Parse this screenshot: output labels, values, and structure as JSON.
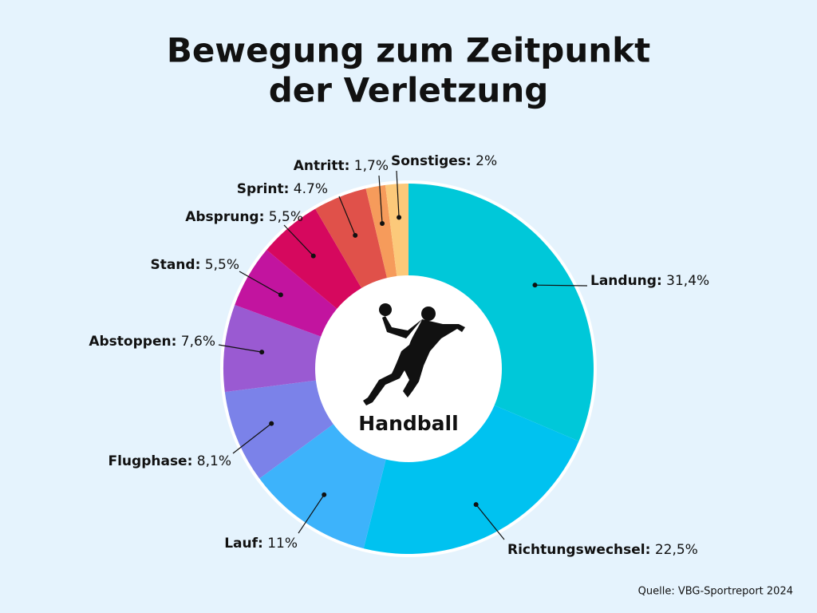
{
  "chart_data": {
    "type": "donut",
    "title": [
      "Bewegung zum Zeitpunkt",
      "der Verletzung"
    ],
    "center_label": "Handball",
    "source": "Quelle: VBG-Sportreport 2024",
    "categories": [
      "Landung:",
      "Richtungswechsel:",
      "Lauf:",
      "Flugphase:",
      "Abstoppen:",
      "Stand:",
      "Absprung:",
      "Sprint:",
      "Antritt:",
      "Sonstiges:"
    ],
    "values": [
      31.4,
      22.5,
      11,
      8.1,
      7.6,
      5.5,
      5.5,
      4.7,
      1.7,
      2
    ],
    "value_labels": [
      "31,4%",
      "22,5%",
      "11%",
      "8,1%",
      "7,6%",
      "5,5%",
      "5,5%",
      "4.7%",
      "1,7%",
      "2%"
    ],
    "colors": [
      "#00c8d9",
      "#00c2f0",
      "#3db3fb",
      "#7b82e9",
      "#9a5ad2",
      "#c2149f",
      "#d6085e",
      "#e0514a",
      "#f69b5b",
      "#fcc97a"
    ]
  }
}
